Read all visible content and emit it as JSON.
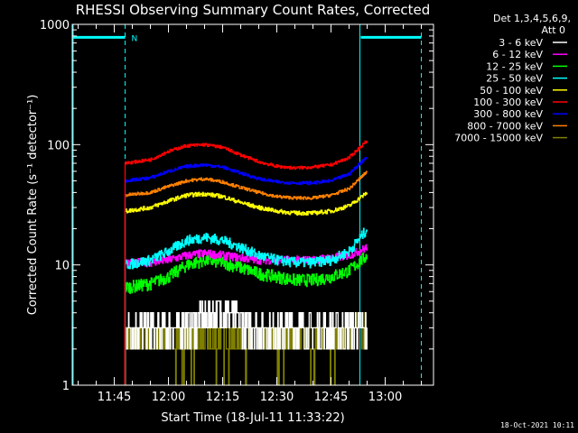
{
  "chart_data": {
    "type": "line",
    "title": "RHESSI Observing Summary Count Rates, Corrected",
    "xlabel": "Start Time (18-Jul-11 11:33:22)",
    "ylabel": "Corrected Count Rate (s⁻¹ detector⁻¹)",
    "y_scale": "log",
    "ylim": [
      1,
      1000
    ],
    "xlim": [
      "11:33:22",
      "13:13:22"
    ],
    "y_ticks": [
      {
        "value": 1,
        "label": "1"
      },
      {
        "value": 10,
        "label": "10"
      },
      {
        "value": 100,
        "label": "100"
      },
      {
        "value": 1000,
        "label": "1000"
      }
    ],
    "x_ticks": [
      {
        "time": "11:45",
        "label": "11:45"
      },
      {
        "time": "12:00",
        "label": "12:00"
      },
      {
        "time": "12:15",
        "label": "12:15"
      },
      {
        "time": "12:30",
        "label": "12:30"
      },
      {
        "time": "12:45",
        "label": "12:45"
      },
      {
        "time": "13:00",
        "label": "13:00"
      }
    ],
    "legend_header": [
      "Det 1,3,4,5,6,9,",
      "Att 0"
    ],
    "legend_position": "right",
    "data_window": [
      "11:48",
      "12:55"
    ],
    "series": [
      {
        "name": "3 - 6 keV",
        "color": "#ffffff",
        "x": [
          "11:48",
          "11:55",
          "12:00",
          "12:05",
          "12:10",
          "12:15",
          "12:20",
          "12:25",
          "12:30",
          "12:35",
          "12:40",
          "12:45",
          "12:50",
          "12:55"
        ],
        "values": [
          3,
          3,
          3,
          3.2,
          3.6,
          4.2,
          3.4,
          3,
          3,
          3,
          3,
          3,
          3,
          3
        ]
      },
      {
        "name": "6 - 12 keV",
        "color": "#ff00ff",
        "x": [
          "11:48",
          "11:55",
          "12:00",
          "12:05",
          "12:10",
          "12:15",
          "12:20",
          "12:25",
          "12:30",
          "12:35",
          "12:40",
          "12:45",
          "12:50",
          "12:55"
        ],
        "values": [
          10.5,
          10.5,
          11,
          12,
          12.5,
          12,
          11.5,
          11,
          11,
          11,
          11,
          11.5,
          12,
          14
        ]
      },
      {
        "name": "12 - 25 keV",
        "color": "#00ff00",
        "x": [
          "11:48",
          "11:55",
          "12:00",
          "12:05",
          "12:10",
          "12:15",
          "12:20",
          "12:25",
          "12:30",
          "12:35",
          "12:40",
          "12:45",
          "12:50",
          "12:55"
        ],
        "values": [
          6.5,
          7,
          8,
          10,
          11,
          10.5,
          9.5,
          8.5,
          8,
          7.5,
          7.5,
          8,
          9,
          12
        ]
      },
      {
        "name": "25 - 50 keV",
        "color": "#00ffff",
        "x": [
          "11:48",
          "11:55",
          "12:00",
          "12:05",
          "12:10",
          "12:15",
          "12:20",
          "12:25",
          "12:30",
          "12:35",
          "12:40",
          "12:45",
          "12:50",
          "12:55"
        ],
        "values": [
          10,
          11,
          13,
          16,
          17,
          16,
          14,
          12,
          11,
          10.5,
          10.5,
          11,
          13,
          20
        ]
      },
      {
        "name": "50 - 100 keV",
        "color": "#ffff00",
        "x": [
          "11:48",
          "11:55",
          "12:00",
          "12:05",
          "12:10",
          "12:15",
          "12:20",
          "12:25",
          "12:30",
          "12:35",
          "12:40",
          "12:45",
          "12:50",
          "12:55"
        ],
        "values": [
          28,
          30,
          34,
          38,
          39,
          37,
          33,
          30,
          28,
          27,
          27,
          28,
          31,
          40
        ]
      },
      {
        "name": "100 - 300 keV",
        "color": "#ff0000",
        "x": [
          "11:48",
          "11:55",
          "12:00",
          "12:05",
          "12:10",
          "12:15",
          "12:20",
          "12:25",
          "12:30",
          "12:35",
          "12:40",
          "12:45",
          "12:50",
          "12:55"
        ],
        "values": [
          70,
          75,
          88,
          98,
          100,
          95,
          82,
          72,
          66,
          64,
          65,
          68,
          78,
          108
        ]
      },
      {
        "name": "300 - 800 keV",
        "color": "#0000ff",
        "x": [
          "11:48",
          "11:55",
          "12:00",
          "12:05",
          "12:10",
          "12:15",
          "12:20",
          "12:25",
          "12:30",
          "12:35",
          "12:40",
          "12:45",
          "12:50",
          "12:55"
        ],
        "values": [
          50,
          53,
          60,
          66,
          68,
          65,
          58,
          52,
          49,
          48,
          48,
          50,
          57,
          80
        ]
      },
      {
        "name": "800 - 7000 keV",
        "color": "#ff8000",
        "x": [
          "11:48",
          "11:55",
          "12:00",
          "12:05",
          "12:10",
          "12:15",
          "12:20",
          "12:25",
          "12:30",
          "12:35",
          "12:40",
          "12:45",
          "12:50",
          "12:55"
        ],
        "values": [
          38,
          40,
          45,
          50,
          52,
          49,
          44,
          40,
          37,
          36,
          36,
          38,
          43,
          60
        ]
      },
      {
        "name": "7000 - 15000 keV",
        "color": "#808000",
        "x": [
          "11:48",
          "11:55",
          "12:00",
          "12:05",
          "12:10",
          "12:15",
          "12:20",
          "12:25",
          "12:30",
          "12:35",
          "12:40",
          "12:45",
          "12:50",
          "12:55"
        ],
        "values": [
          2.4,
          2.4,
          2.5,
          2.4,
          2.3,
          2.4,
          2.4,
          2.5,
          2.4,
          2.4,
          2.3,
          2.4,
          2.5,
          3.2
        ]
      }
    ],
    "overlays": {
      "color": "#00ffff",
      "night_bars": [
        {
          "start": "11:33:22",
          "end": "11:48",
          "level": 780
        },
        {
          "start": "12:53",
          "end": "13:10",
          "level": 780
        }
      ],
      "vertical_lines": [
        "11:48",
        "12:53",
        "13:10"
      ],
      "marker_label": "N"
    },
    "grid": false
  },
  "footer": {
    "timestamp": "18-Oct-2021 10:11"
  }
}
